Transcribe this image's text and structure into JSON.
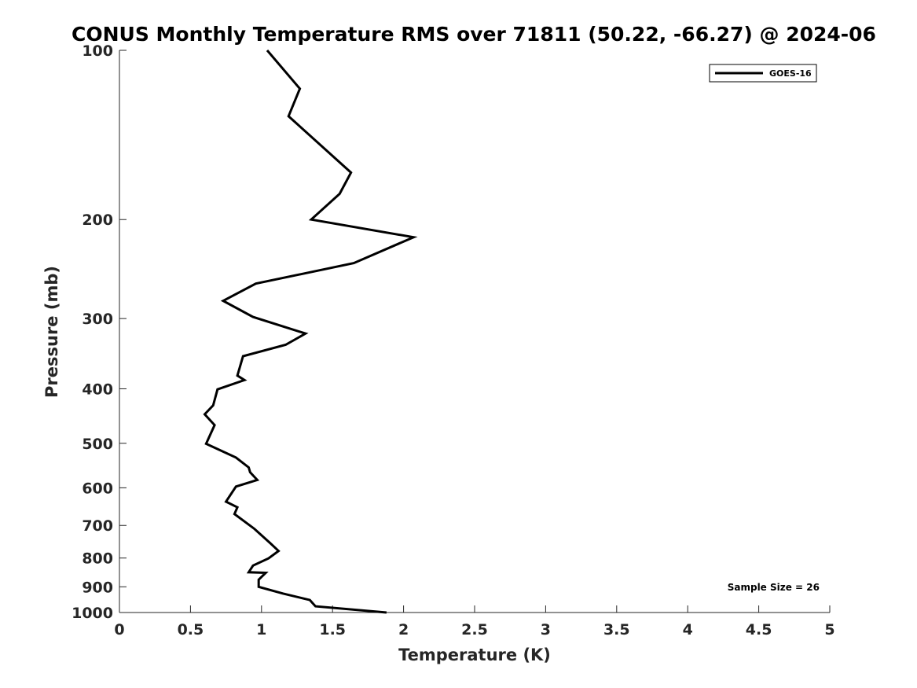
{
  "chart_data": {
    "type": "line",
    "title": "CONUS Monthly Temperature RMS over 71811 (50.22, -66.27) @ 2024-06",
    "xlabel": "Temperature (K)",
    "ylabel": "Pressure (mb)",
    "xlim": [
      0,
      5
    ],
    "ylim": [
      1000,
      100
    ],
    "yscale": "log",
    "y_reversed": true,
    "x_ticks": [
      "0",
      "0.5",
      "1",
      "1.5",
      "2",
      "2.5",
      "3",
      "3.5",
      "4",
      "4.5",
      "5"
    ],
    "x_tick_values": [
      0,
      0.5,
      1,
      1.5,
      2,
      2.5,
      3,
      3.5,
      4,
      4.5,
      5
    ],
    "y_ticks": [
      "100",
      "200",
      "300",
      "400",
      "500",
      "600",
      "700",
      "800",
      "900",
      "1000"
    ],
    "y_tick_values": [
      100,
      200,
      300,
      400,
      500,
      600,
      700,
      800,
      900,
      1000
    ],
    "grid": false,
    "legend_position": "top-right",
    "annotation": "Sample Size = 26",
    "series": [
      {
        "name": "GOES-16",
        "color": "#000000",
        "x": [
          1.04,
          1.27,
          1.19,
          1.63,
          1.55,
          1.35,
          2.07,
          1.65,
          0.96,
          0.73,
          0.94,
          1.31,
          1.17,
          0.87,
          0.83,
          0.88,
          0.69,
          0.66,
          0.6,
          0.67,
          0.61,
          0.82,
          0.91,
          0.92,
          0.97,
          0.82,
          0.75,
          0.83,
          0.81,
          0.95,
          1.06,
          1.12,
          1.05,
          0.94,
          0.91,
          1.03,
          0.98,
          0.98,
          1.15,
          1.34,
          1.38,
          1.88
        ],
        "y": [
          100,
          117,
          131,
          165,
          180,
          200,
          215,
          239,
          260,
          279,
          298,
          319,
          334,
          350,
          379,
          386,
          401,
          428,
          444,
          464,
          501,
          530,
          552,
          563,
          581,
          597,
          635,
          650,
          668,
          710,
          752,
          777,
          801,
          825,
          848,
          850,
          874,
          900,
          925,
          950,
          975,
          1000
        ]
      }
    ]
  }
}
